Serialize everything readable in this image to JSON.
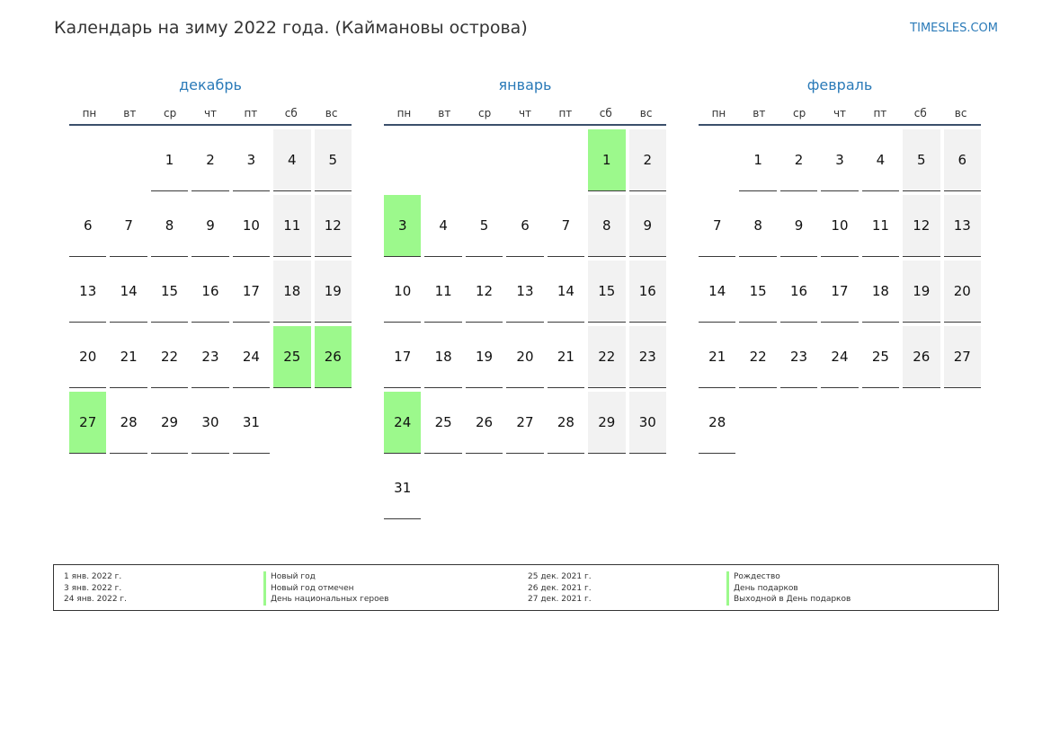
{
  "header": {
    "title": "Календарь на зиму 2022 года. (Каймановы острова)",
    "site": "TIMESLES.COM"
  },
  "weekdays": [
    "пн",
    "вт",
    "ср",
    "чт",
    "пт",
    "сб",
    "вс"
  ],
  "colors": {
    "accent": "#2a7ab8",
    "holiday": "#9cf98c",
    "weekend": "#f2f2f2",
    "header_rule": "#3b4f6b"
  },
  "months": [
    {
      "name": "декабрь",
      "start_weekday": 2,
      "days": 31,
      "holidays": [
        25,
        26,
        27
      ]
    },
    {
      "name": "январь",
      "start_weekday": 5,
      "days": 31,
      "holidays": [
        1,
        3,
        24
      ]
    },
    {
      "name": "февраль",
      "start_weekday": 1,
      "days": 28,
      "holidays": []
    }
  ],
  "legend": {
    "left_dates": [
      "1 янв. 2022 г.",
      "3 янв. 2022 г.",
      "24 янв. 2022 г."
    ],
    "left_names": [
      "Новый год",
      "Новый год отмечен",
      "День национальных героев"
    ],
    "right_dates": [
      "25 дек. 2021 г.",
      "26 дек. 2021 г.",
      "27 дек. 2021 г."
    ],
    "right_names": [
      "Рождество",
      "День подарков",
      "Выходной в День подарков"
    ]
  }
}
